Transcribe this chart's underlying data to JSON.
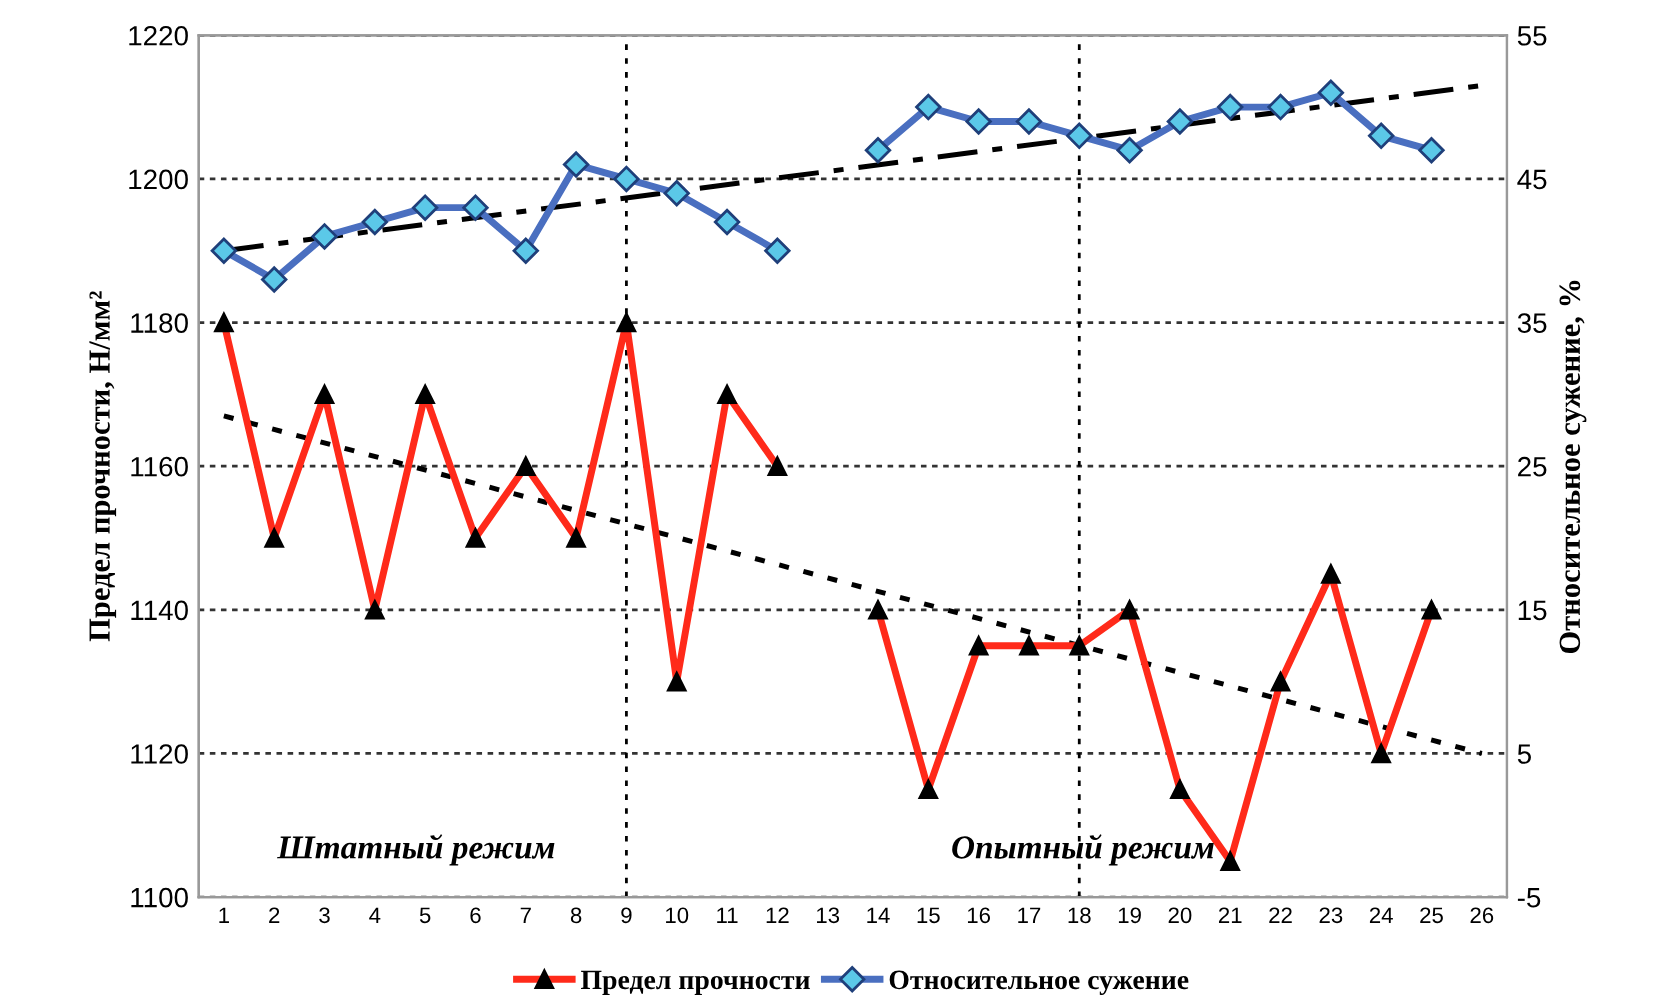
{
  "chart_data": {
    "type": "line",
    "ylabel": "Предел прочности, Н/мм²",
    "y2label": "Относительное сужение, %",
    "xlim": [
      0.5,
      26.5
    ],
    "xticks": [
      1,
      2,
      3,
      4,
      5,
      6,
      7,
      8,
      9,
      10,
      11,
      12,
      13,
      14,
      15,
      16,
      17,
      18,
      19,
      20,
      21,
      22,
      23,
      24,
      25,
      26
    ],
    "ylim": [
      1100,
      1220
    ],
    "yticks": [
      1100,
      1120,
      1140,
      1160,
      1180,
      1200,
      1220
    ],
    "y2lim": [
      -5,
      55
    ],
    "y2ticks": [
      -5,
      5,
      15,
      25,
      35,
      45,
      55
    ],
    "grid": "y",
    "legend": "bottom",
    "series": [
      {
        "name": "Предел прочности",
        "color": "#ff2a1a",
        "marker": "triangle",
        "line_style": "solid",
        "x": [
          1,
          2,
          3,
          4,
          5,
          6,
          7,
          8,
          9,
          10,
          11,
          12,
          13,
          14,
          15,
          16,
          17,
          18,
          19,
          20,
          21,
          22,
          23,
          24,
          25
        ],
        "values": [
          1180,
          1150,
          1170,
          1140,
          1170,
          1150,
          1160,
          1150,
          1180,
          1130,
          1170,
          1160,
          null,
          1140,
          1115,
          1135,
          1135,
          1135,
          1140,
          1115,
          1105,
          1130,
          1145,
          1120,
          1140
        ]
      },
      {
        "name": "Относительное сужение",
        "color": "#4a6fc0",
        "marker": "diamond",
        "line_style": "solid",
        "axis": "y2",
        "x": [
          1,
          2,
          3,
          4,
          5,
          6,
          7,
          8,
          9,
          10,
          11,
          12,
          13,
          14,
          15,
          16,
          17,
          18,
          19,
          20,
          21,
          22,
          23,
          24,
          25
        ],
        "values": [
          40,
          38,
          41,
          42,
          43,
          43,
          40,
          46,
          45,
          44,
          42,
          40,
          null,
          47,
          50,
          49,
          49,
          48,
          47,
          49,
          50,
          50,
          51,
          48,
          47
        ]
      },
      {
        "color": "#000000",
        "marker": "none",
        "line_style": "dotted",
        "x": [
          1,
          26
        ],
        "values": [
          1167,
          1120
        ]
      },
      {
        "color": "#000000",
        "marker": "none",
        "line_style": "dashed",
        "axis": "y2",
        "x": [
          1,
          26
        ],
        "values": [
          40,
          51.5
        ]
      }
    ],
    "ref_lines": [
      {
        "axis": "x",
        "value": 9,
        "color": "#000000",
        "line_style": "dotted"
      },
      {
        "axis": "x",
        "value": 18,
        "color": "#000000",
        "line_style": "dotted"
      }
    ],
    "annotations": [
      "Штатный режим",
      "Опытный режим"
    ]
  }
}
